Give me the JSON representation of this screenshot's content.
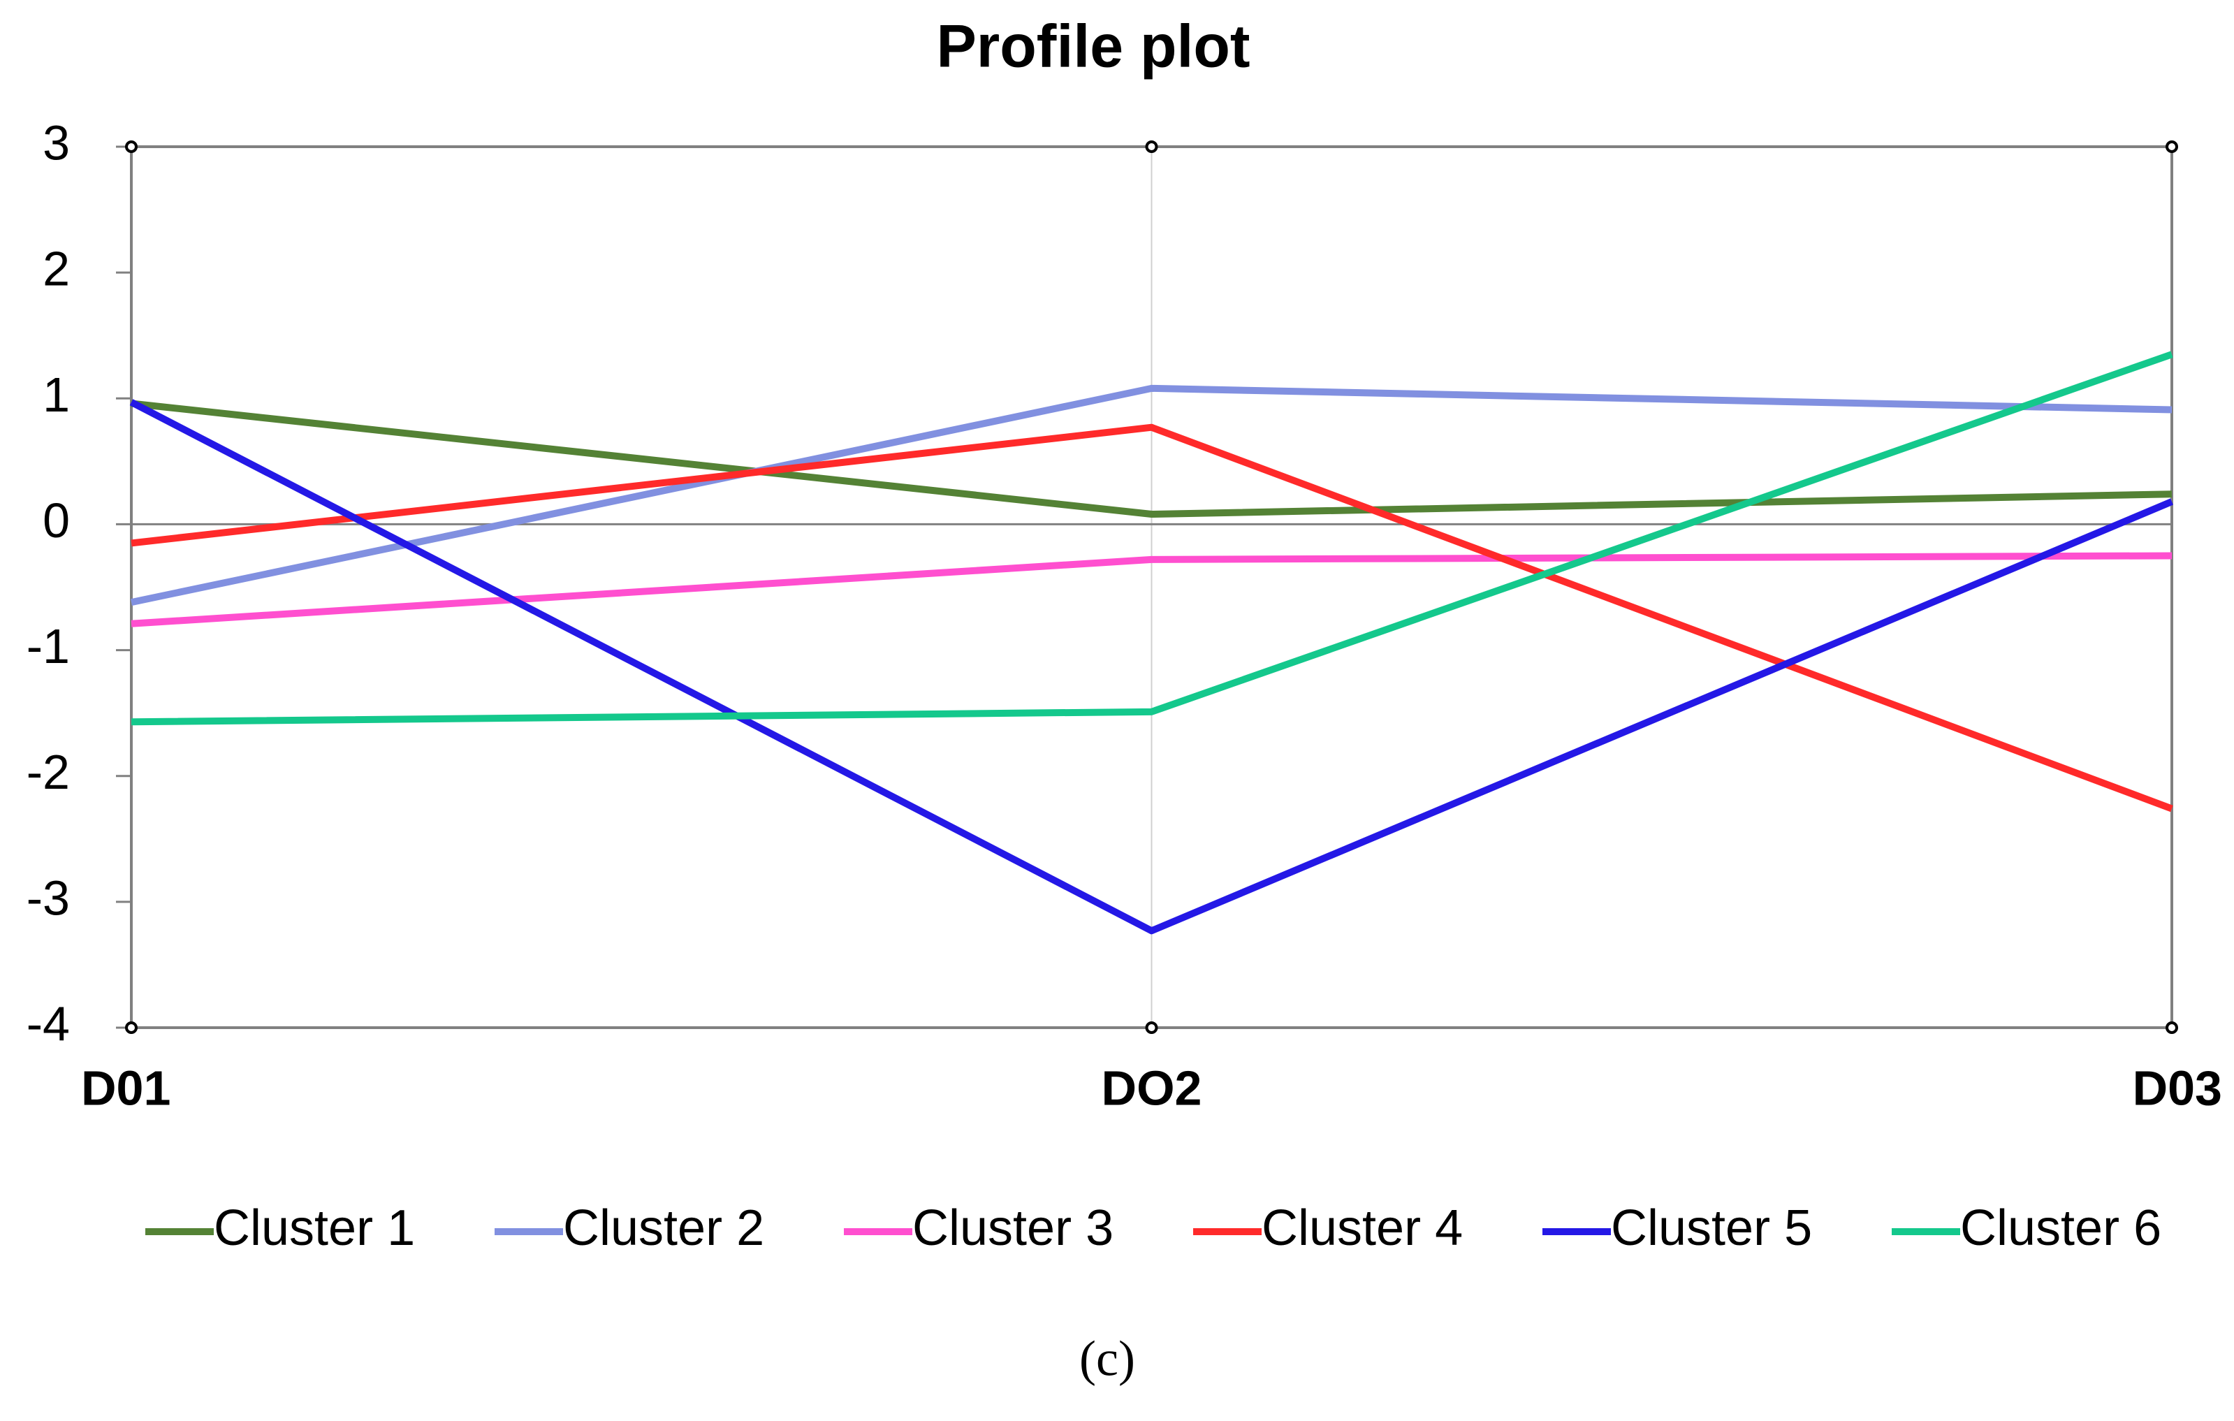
{
  "chart_data": {
    "type": "line",
    "title": "Profile plot",
    "categories": [
      "D01",
      "DO2",
      "D03"
    ],
    "series": [
      {
        "name": "Cluster 1",
        "color": "#548235",
        "values": [
          0.96,
          0.08,
          0.24
        ]
      },
      {
        "name": "Cluster 2",
        "color": "#8190e0",
        "values": [
          -0.62,
          1.08,
          0.91
        ]
      },
      {
        "name": "Cluster 3",
        "color": "#ff4fcf",
        "values": [
          -0.79,
          -0.28,
          -0.25
        ]
      },
      {
        "name": "Cluster 4",
        "color": "#ff2a2a",
        "values": [
          -0.15,
          0.77,
          -2.26
        ]
      },
      {
        "name": "Cluster 5",
        "color": "#2418e6",
        "values": [
          0.97,
          -3.23,
          0.18
        ]
      },
      {
        "name": "Cluster 6",
        "color": "#14c88c",
        "values": [
          -1.57,
          -1.49,
          1.35
        ]
      }
    ],
    "ylim": [
      -4,
      3
    ],
    "yticks": [
      -4,
      -3,
      -2,
      -1,
      0,
      1,
      2,
      3
    ],
    "grid": true,
    "legend": "bottom"
  },
  "caption": "(c)"
}
